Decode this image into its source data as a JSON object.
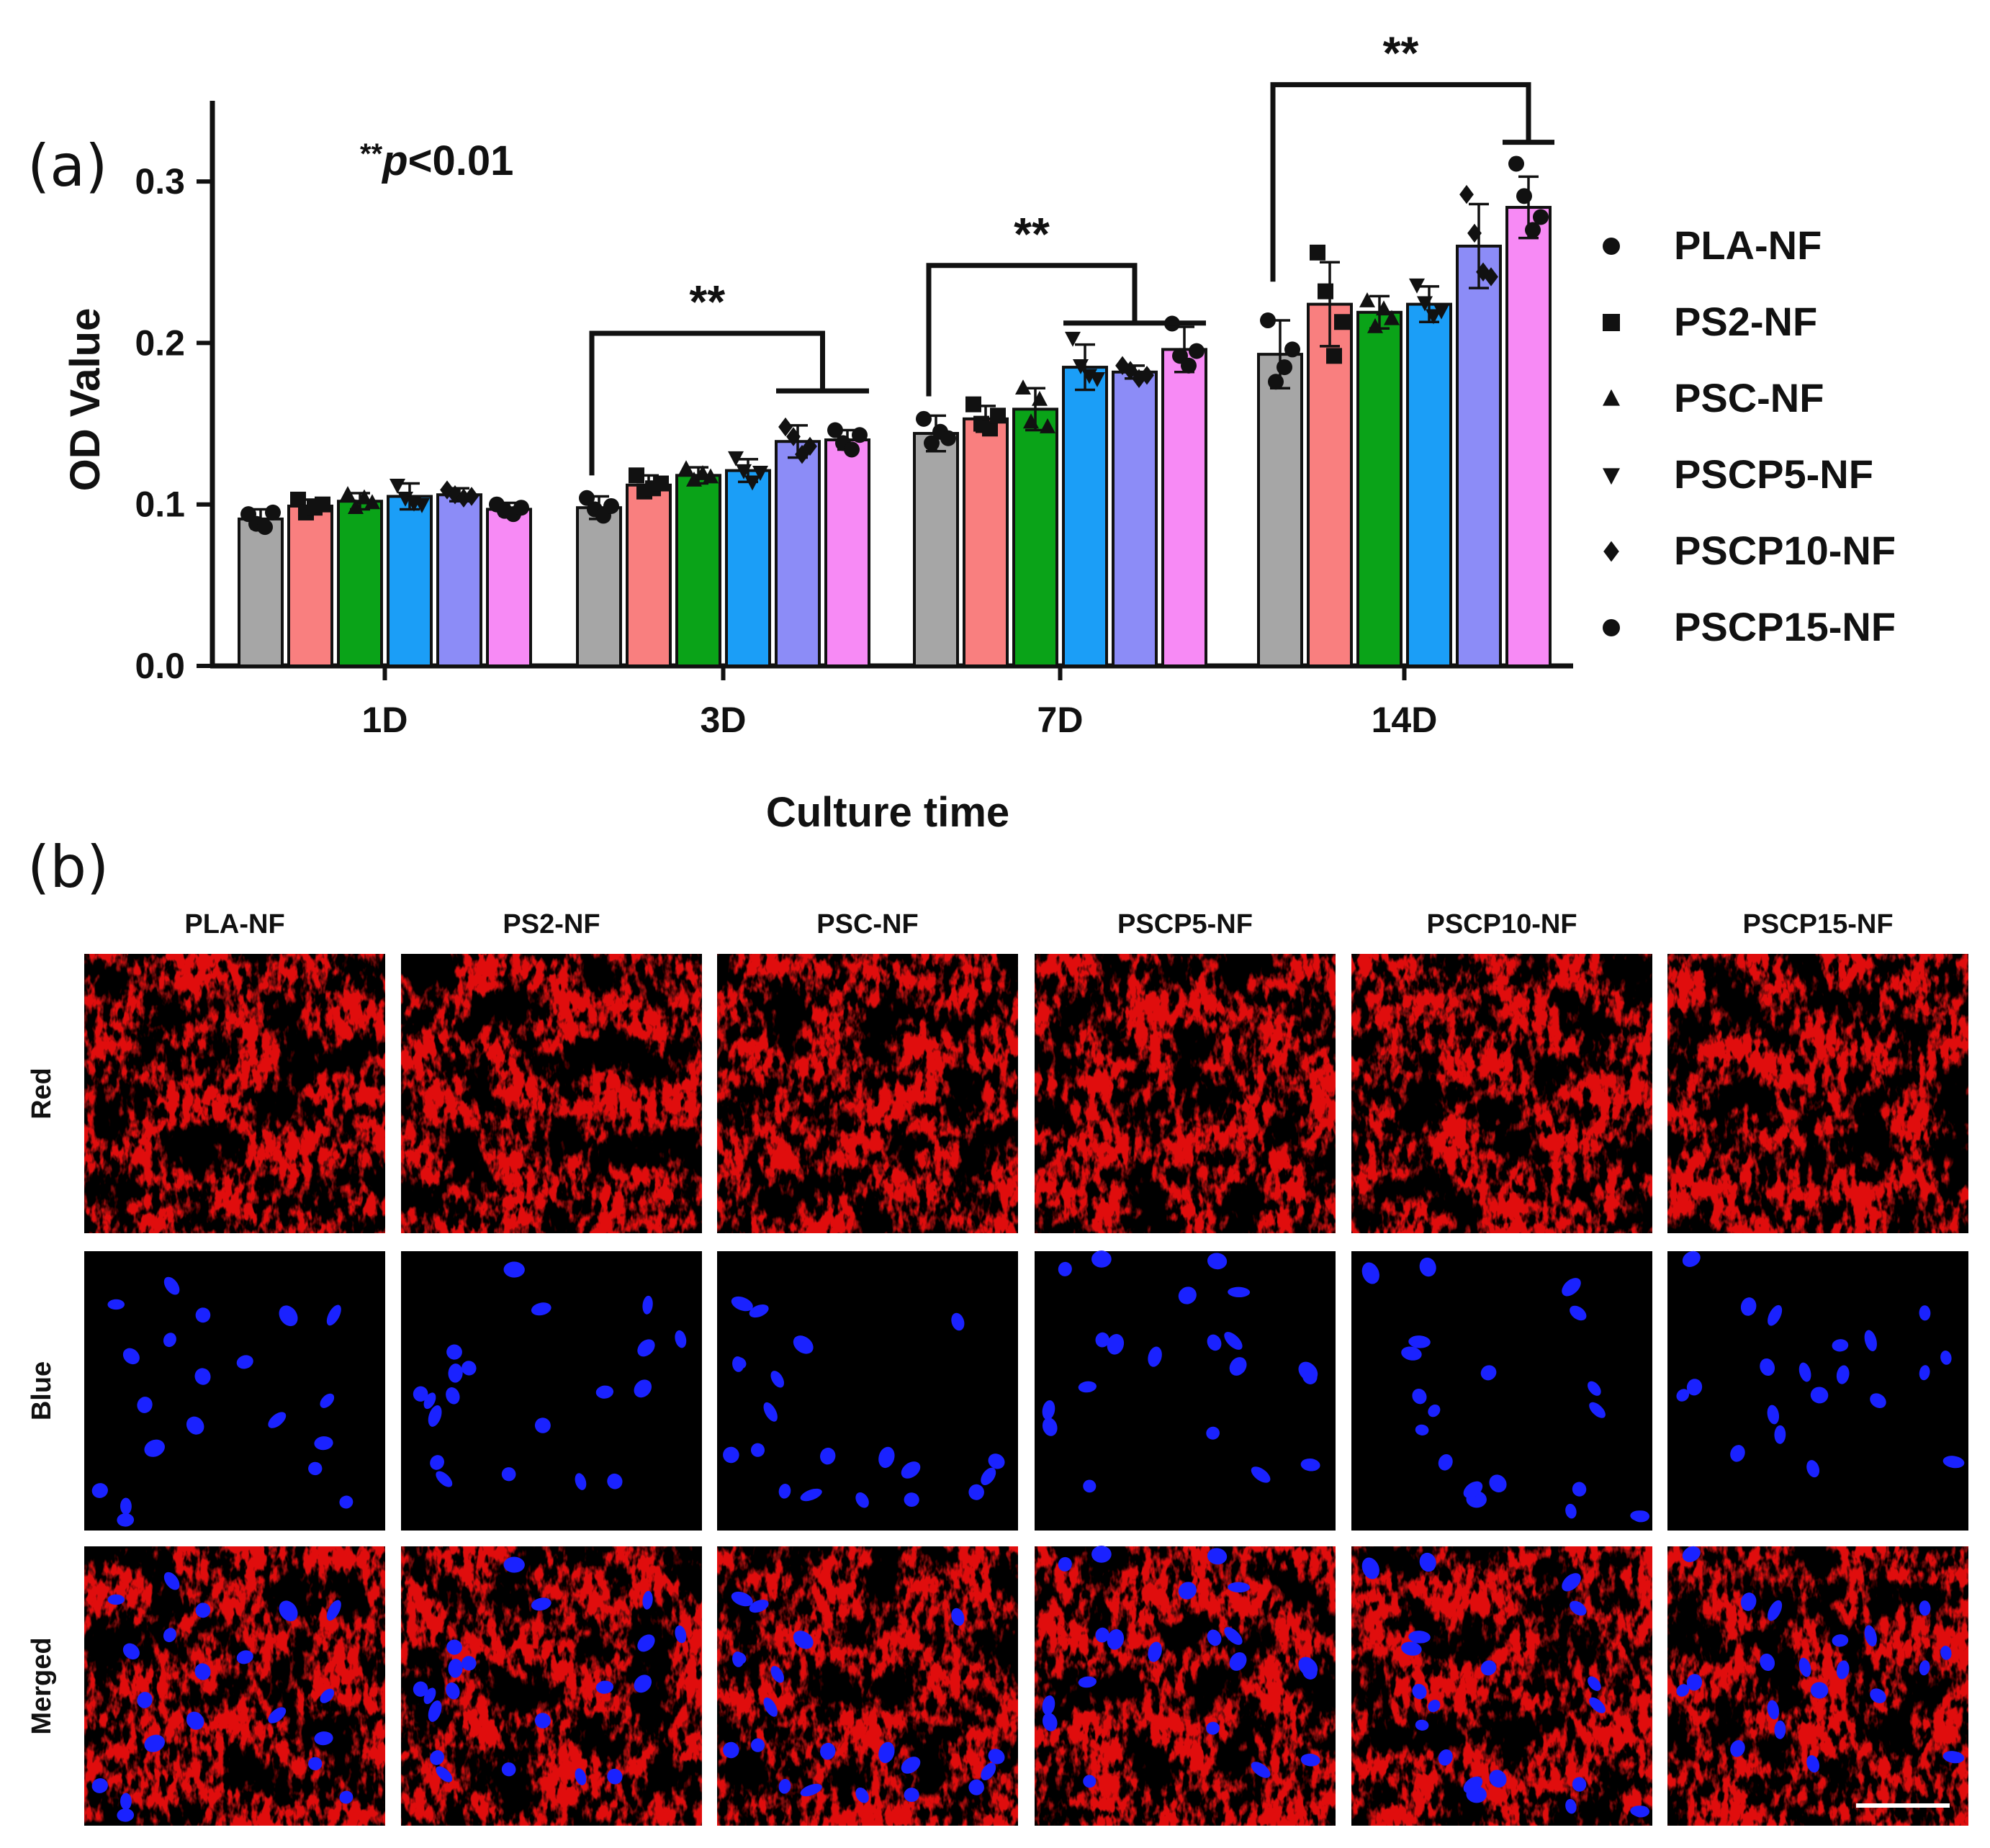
{
  "panel_a": {
    "label": "(a)"
  },
  "panel_b": {
    "label": "(b)"
  },
  "chart_data": {
    "type": "bar",
    "xlabel": "Culture time",
    "ylabel": "OD Value",
    "ylim": [
      0,
      0.35
    ],
    "yticks": [
      "0.0",
      "0.1",
      "0.2",
      "0.3"
    ],
    "ytick_values": [
      0,
      0.1,
      0.2,
      0.3
    ],
    "categories": [
      "1D",
      "3D",
      "7D",
      "14D"
    ],
    "legend_position": "right",
    "annotation": {
      "stars": "**",
      "p": "p",
      "rest": "<0.01"
    },
    "significance_label": "**",
    "series": [
      {
        "name": "PLA-NF",
        "marker": "circle",
        "color": "#a6a6a6",
        "values": [
          0.091,
          0.098,
          0.144,
          0.193
        ],
        "errors": [
          0.006,
          0.007,
          0.011,
          0.021
        ],
        "points": [
          [
            0.094,
            0.088,
            0.086,
            0.095
          ],
          [
            0.104,
            0.097,
            0.093,
            0.099
          ],
          [
            0.153,
            0.138,
            0.145,
            0.141
          ],
          [
            0.214,
            0.176,
            0.185,
            0.196
          ]
        ]
      },
      {
        "name": "PS2-NF",
        "marker": "square",
        "color": "#f97f7f",
        "values": [
          0.099,
          0.112,
          0.153,
          0.224
        ],
        "errors": [
          0.004,
          0.006,
          0.008,
          0.026
        ],
        "points": [
          [
            0.103,
            0.095,
            0.098,
            0.1
          ],
          [
            0.118,
            0.108,
            0.11,
            0.113
          ],
          [
            0.162,
            0.15,
            0.147,
            0.155
          ],
          [
            0.256,
            0.232,
            0.192,
            0.213
          ]
        ]
      },
      {
        "name": "PSC-NF",
        "marker": "triangle",
        "color": "#0aa318",
        "values": [
          0.102,
          0.118,
          0.159,
          0.219
        ],
        "errors": [
          0.005,
          0.005,
          0.013,
          0.01
        ],
        "points": [
          [
            0.106,
            0.098,
            0.104,
            0.101
          ],
          [
            0.122,
            0.115,
            0.119,
            0.117
          ],
          [
            0.172,
            0.151,
            0.165,
            0.148
          ],
          [
            0.226,
            0.21,
            0.221,
            0.215
          ]
        ]
      },
      {
        "name": "PSCP5-NF",
        "marker": "triangle-down",
        "color": "#1b9ef7",
        "values": [
          0.105,
          0.121,
          0.185,
          0.224
        ],
        "errors": [
          0.008,
          0.007,
          0.014,
          0.011
        ],
        "points": [
          [
            0.112,
            0.104,
            0.101,
            0.1
          ],
          [
            0.129,
            0.121,
            0.114,
            0.12
          ],
          [
            0.203,
            0.186,
            0.18,
            0.178
          ],
          [
            0.236,
            0.225,
            0.217,
            0.22
          ]
        ]
      },
      {
        "name": "PSCP10-NF",
        "marker": "diamond",
        "color": "#8c8cf7",
        "values": [
          0.106,
          0.139,
          0.182,
          0.26
        ],
        "errors": [
          0.004,
          0.01,
          0.004,
          0.026
        ],
        "points": [
          [
            0.109,
            0.106,
            0.104,
            0.105
          ],
          [
            0.148,
            0.142,
            0.131,
            0.136
          ],
          [
            0.186,
            0.183,
            0.178,
            0.18
          ],
          [
            0.292,
            0.268,
            0.244,
            0.241
          ]
        ]
      },
      {
        "name": "PSCP15-NF",
        "marker": "circle",
        "color": "#f78af5",
        "values": [
          0.097,
          0.14,
          0.196,
          0.284
        ],
        "errors": [
          0.004,
          0.006,
          0.014,
          0.019
        ],
        "points": [
          [
            0.1,
            0.096,
            0.094,
            0.098
          ],
          [
            0.146,
            0.138,
            0.134,
            0.143
          ],
          [
            0.212,
            0.192,
            0.186,
            0.195
          ],
          [
            0.311,
            0.291,
            0.27,
            0.278
          ]
        ]
      }
    ],
    "brackets": [
      {
        "category": "3D",
        "from_series": "PLA-NF",
        "to_series": [
          "PSCP10-NF",
          "PSCP15-NF"
        ]
      },
      {
        "category": "7D",
        "from_series": "PLA-NF",
        "to_series": [
          "PSCP5-NF",
          "PSCP15-NF"
        ]
      },
      {
        "category": "14D",
        "from_series": "PLA-NF",
        "to_series": [
          "PSCP15-NF"
        ]
      }
    ]
  },
  "micrographs": {
    "columns": [
      "PLA-NF",
      "PS2-NF",
      "PSC-NF",
      "PSCP5-NF",
      "PSCP10-NF",
      "PSCP15-NF"
    ],
    "rows": [
      "Red",
      "Blue",
      "Merged"
    ],
    "colors": {
      "background": "#000000",
      "actin": "#e01010",
      "nuclei": "#1a22ff"
    }
  }
}
